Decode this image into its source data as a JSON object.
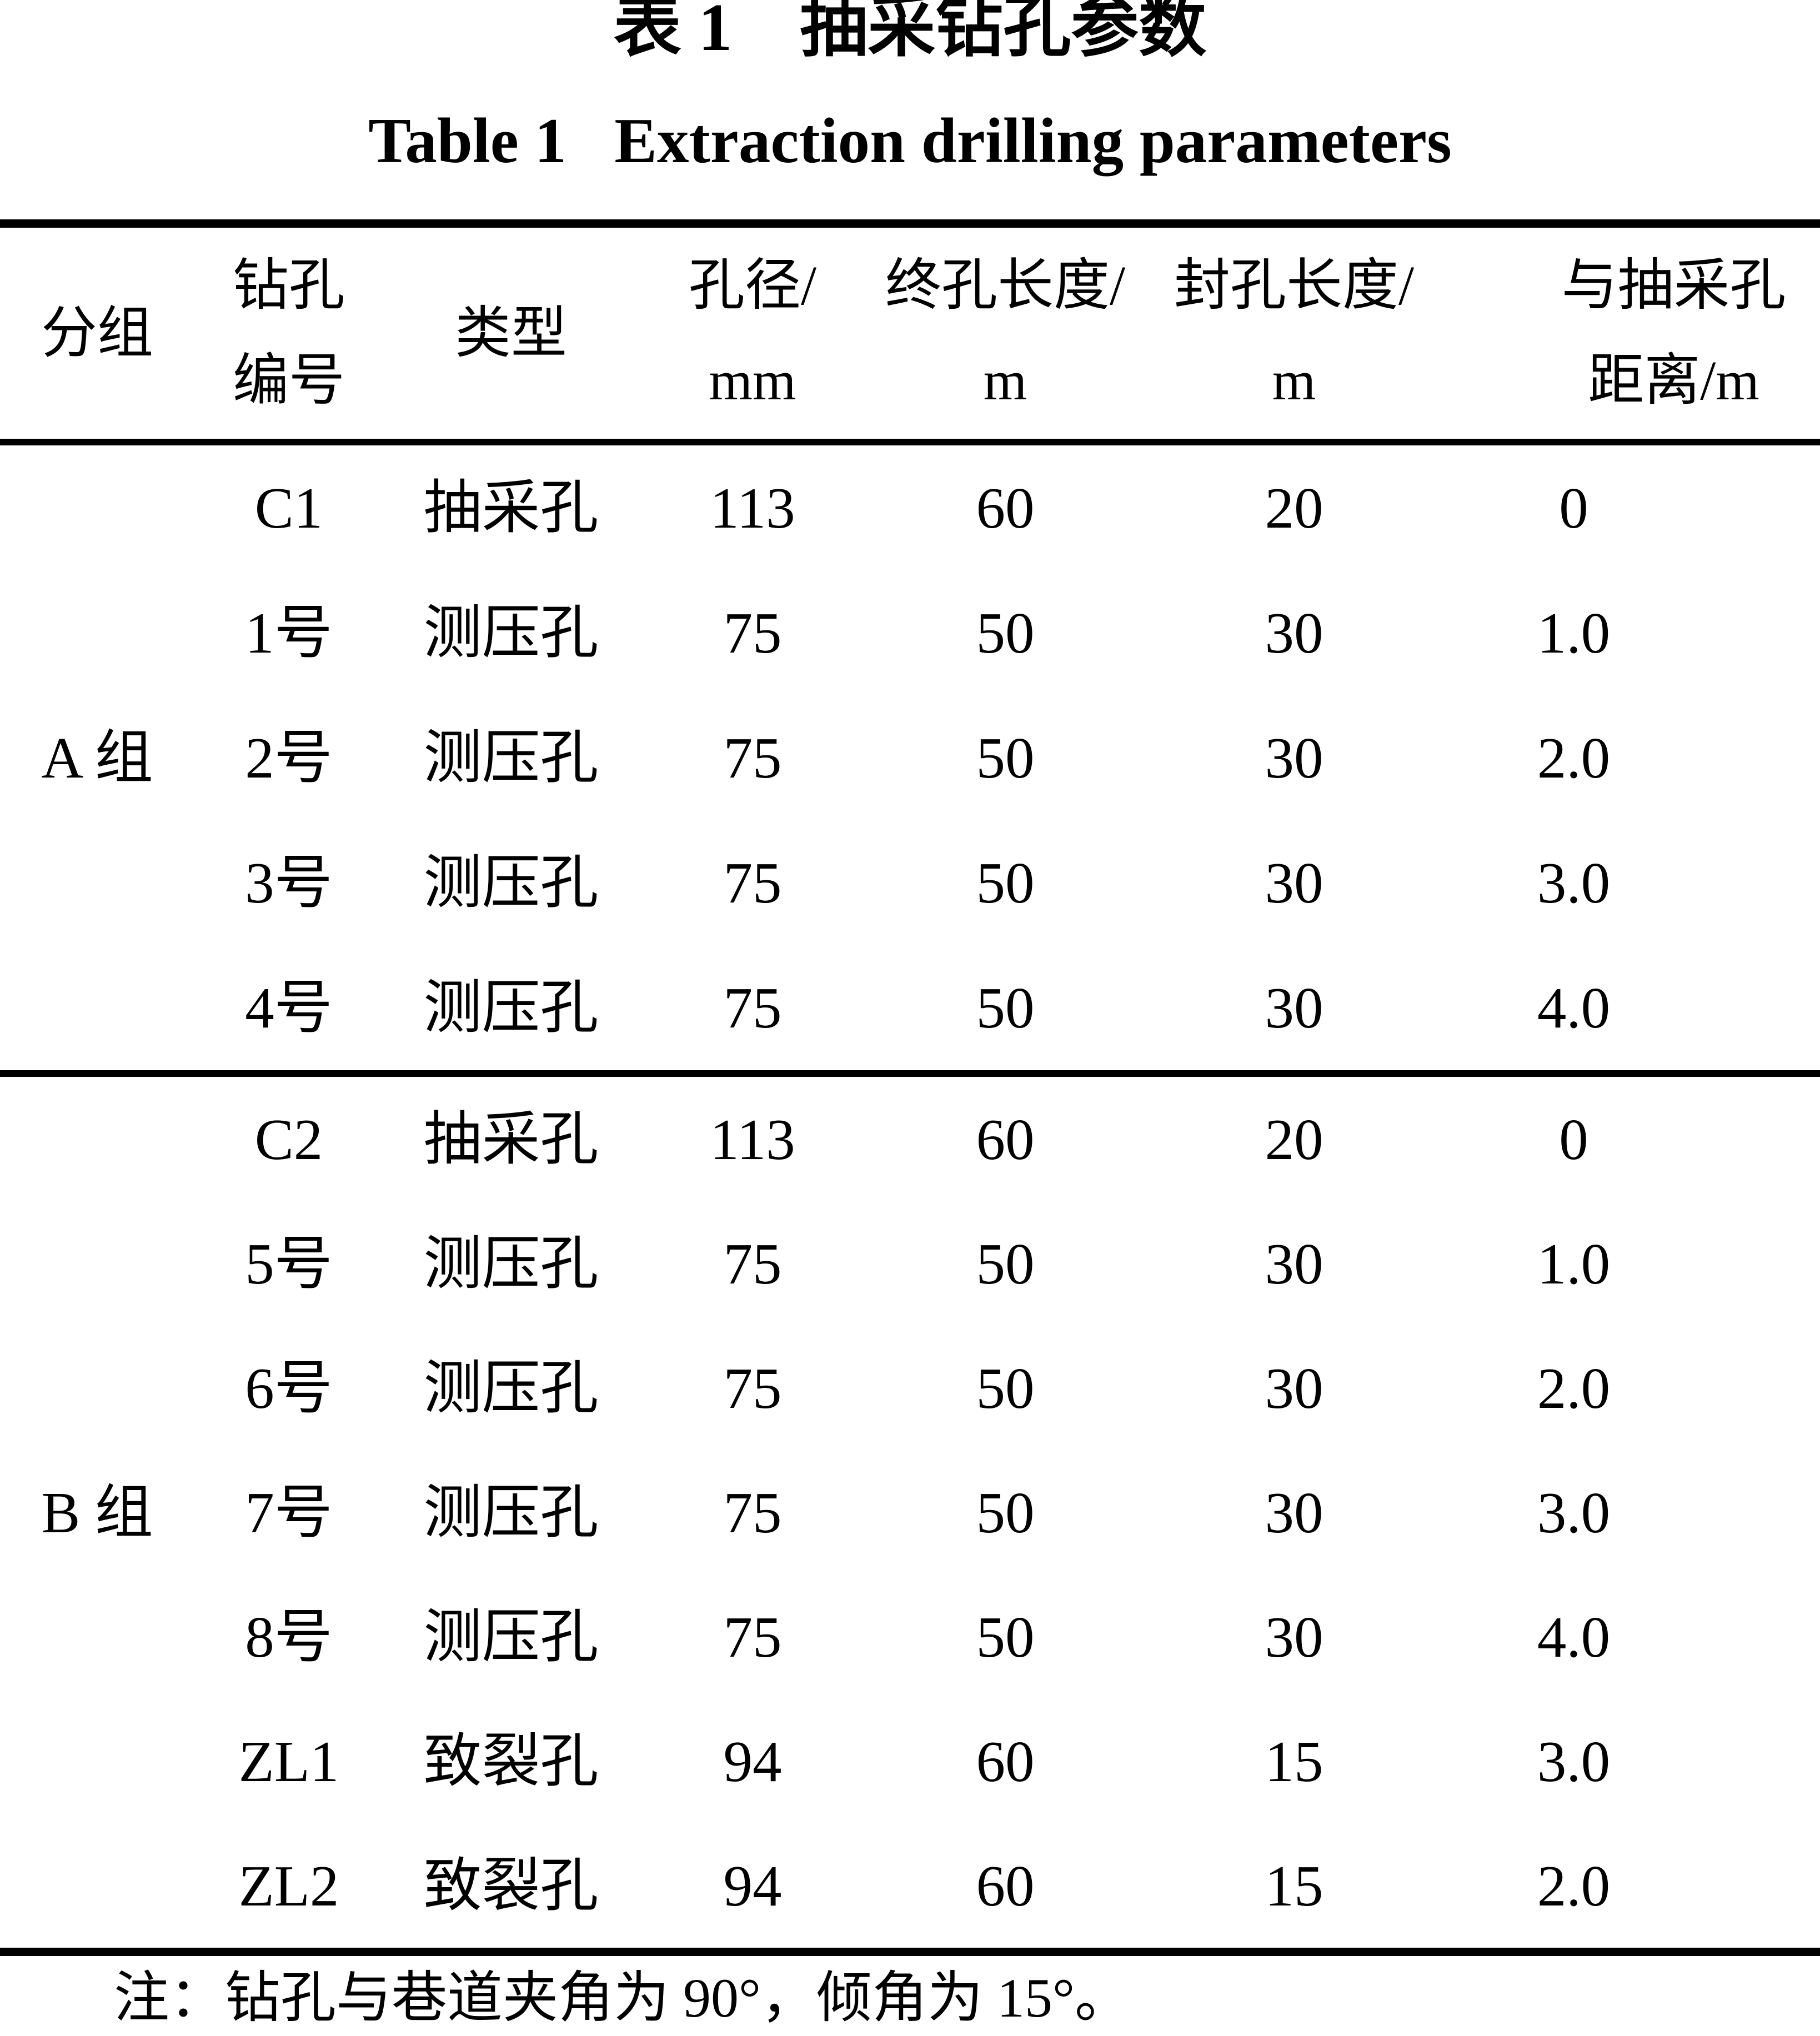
{
  "title_zh": "表 1　抽采钻孔参数",
  "title_en": "Table 1   Extraction drilling parameters",
  "table": {
    "headers": [
      {
        "line1": "分组",
        "line2": ""
      },
      {
        "line1": "钻孔",
        "line2": "编号"
      },
      {
        "line1": "类型",
        "line2": ""
      },
      {
        "line1": "孔径/",
        "line2": "mm"
      },
      {
        "line1": "终孔长度/",
        "line2": "m"
      },
      {
        "line1": "封孔长度/",
        "line2": "m"
      },
      {
        "line1": "与抽采孔",
        "line2": "距离/m"
      }
    ],
    "groups": [
      {
        "label": "A 组",
        "rows": [
          {
            "id": "C1",
            "type": "抽采孔",
            "diameter": "113",
            "length": "60",
            "seal": "20",
            "distance": "0"
          },
          {
            "id": "1号",
            "type": "测压孔",
            "diameter": "75",
            "length": "50",
            "seal": "30",
            "distance": "1.0"
          },
          {
            "id": "2号",
            "type": "测压孔",
            "diameter": "75",
            "length": "50",
            "seal": "30",
            "distance": "2.0"
          },
          {
            "id": "3号",
            "type": "测压孔",
            "diameter": "75",
            "length": "50",
            "seal": "30",
            "distance": "3.0"
          },
          {
            "id": "4号",
            "type": "测压孔",
            "diameter": "75",
            "length": "50",
            "seal": "30",
            "distance": "4.0"
          }
        ]
      },
      {
        "label": "B 组",
        "rows": [
          {
            "id": "C2",
            "type": "抽采孔",
            "diameter": "113",
            "length": "60",
            "seal": "20",
            "distance": "0"
          },
          {
            "id": "5号",
            "type": "测压孔",
            "diameter": "75",
            "length": "50",
            "seal": "30",
            "distance": "1.0"
          },
          {
            "id": "6号",
            "type": "测压孔",
            "diameter": "75",
            "length": "50",
            "seal": "30",
            "distance": "2.0"
          },
          {
            "id": "7号",
            "type": "测压孔",
            "diameter": "75",
            "length": "50",
            "seal": "30",
            "distance": "3.0"
          },
          {
            "id": "8号",
            "type": "测压孔",
            "diameter": "75",
            "length": "50",
            "seal": "30",
            "distance": "4.0"
          },
          {
            "id": "ZL1",
            "type": "致裂孔",
            "diameter": "94",
            "length": "60",
            "seal": "15",
            "distance": "3.0"
          },
          {
            "id": "ZL2",
            "type": "致裂孔",
            "diameter": "94",
            "length": "60",
            "seal": "15",
            "distance": "2.0"
          }
        ]
      }
    ]
  },
  "note": "注：钻孔与巷道夹角为 90°，倾角为 15°。"
}
